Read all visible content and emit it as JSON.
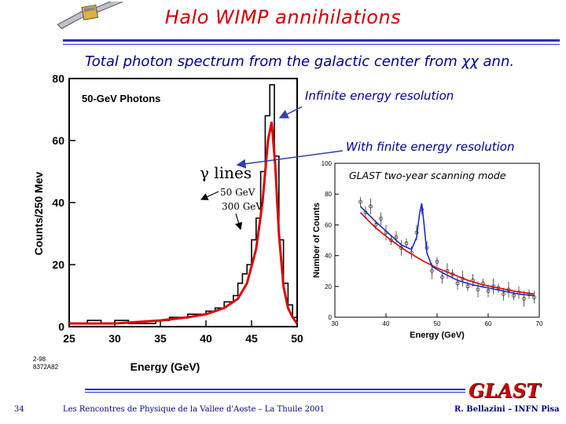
{
  "slide": {
    "title": "Halo WIMP annihilations",
    "subtitle": "Total photon spectrum from the galactic center from χχ ann.",
    "note_infinite": "Infinite energy resolution",
    "note_finite": "With finite energy resolution",
    "logo_text": "GLAST",
    "footer_left": "Les Rencontres de Physique de la Vallee d'Aoste – La Thuile 2001",
    "footer_right": "R. Bellazini – INFN Pisa",
    "page_number": "34",
    "accent_color": "#cc0000",
    "rule_color": "#2c2cc8"
  },
  "chart_data": [
    {
      "type": "line",
      "title": "50-GeV Photons",
      "xlabel": "Energy (GeV)",
      "ylabel": "Counts/250 Mev",
      "xlim": [
        25,
        50
      ],
      "ylim": [
        0,
        80
      ],
      "xticks": [
        25,
        30,
        35,
        40,
        45,
        50
      ],
      "yticks": [
        0,
        20,
        40,
        60,
        80
      ],
      "tag_line1": "2-98",
      "tag_line2": "8372A82",
      "annotation_lines": "γ lines",
      "annotation_50": "50 GeV",
      "annotation_300": "300 GeV",
      "series": [
        {
          "name": "histogram",
          "x": [
            25.5,
            27,
            28.5,
            30,
            31.5,
            33,
            34.5,
            36,
            37,
            38,
            39,
            40,
            41,
            42,
            43,
            43.5,
            44,
            44.5,
            45,
            45.5,
            46,
            46.5,
            47,
            47.5,
            48,
            48.5,
            49,
            49.5,
            50
          ],
          "y": [
            1,
            2,
            1,
            2,
            1,
            1,
            2,
            3,
            3,
            4,
            4,
            5,
            6,
            8,
            10,
            14,
            17,
            20,
            28,
            35,
            50,
            68,
            78,
            55,
            28,
            14,
            7,
            3,
            1
          ]
        },
        {
          "name": "fit",
          "x": [
            25,
            30,
            35,
            38,
            40,
            42,
            43.5,
            44.5,
            45.5,
            46.2,
            46.8,
            47.2,
            47.6,
            48,
            48.5,
            49,
            49.5,
            50
          ],
          "y": [
            1,
            1,
            2,
            3,
            4,
            6,
            9,
            14,
            25,
            40,
            60,
            66,
            52,
            30,
            13,
            6,
            3,
            1
          ]
        }
      ]
    },
    {
      "type": "scatter",
      "title": "GLAST two-year scanning mode",
      "xlabel": "Energy (GeV)",
      "ylabel": "Number of Counts",
      "xlim": [
        30,
        70
      ],
      "ylim": [
        0,
        100
      ],
      "xticks": [
        30,
        40,
        50,
        60,
        70
      ],
      "yticks": [
        0,
        20,
        40,
        60,
        80,
        100
      ],
      "series": [
        {
          "name": "data",
          "x": [
            35,
            36,
            37,
            38,
            39,
            40,
            41,
            42,
            43,
            44,
            45,
            46,
            47,
            48,
            49,
            50,
            51,
            52,
            53,
            54,
            55,
            56,
            57,
            58,
            59,
            60,
            61,
            62,
            63,
            64,
            65,
            66,
            67,
            68,
            69
          ],
          "y": [
            75,
            68,
            72,
            60,
            64,
            55,
            50,
            52,
            45,
            48,
            42,
            55,
            70,
            45,
            30,
            36,
            26,
            30,
            28,
            22,
            25,
            20,
            24,
            18,
            22,
            17,
            20,
            19,
            15,
            18,
            14,
            16,
            12,
            15,
            13
          ]
        },
        {
          "name": "fit_peak",
          "x": [
            35,
            38,
            41,
            43,
            45,
            46,
            46.6,
            47,
            47.4,
            48,
            49,
            51,
            54,
            57,
            60,
            63,
            66,
            69
          ],
          "y": [
            72,
            62,
            53,
            47,
            44,
            52,
            68,
            74,
            62,
            42,
            33,
            29,
            24,
            21,
            19,
            17,
            15,
            14
          ]
        },
        {
          "name": "fit_continuum",
          "x": [
            35,
            38,
            41,
            44,
            47,
            50,
            53,
            56,
            59,
            62,
            65,
            69
          ],
          "y": [
            68,
            58,
            50,
            43,
            37,
            32,
            28,
            24,
            21,
            19,
            17,
            15
          ]
        }
      ]
    }
  ]
}
